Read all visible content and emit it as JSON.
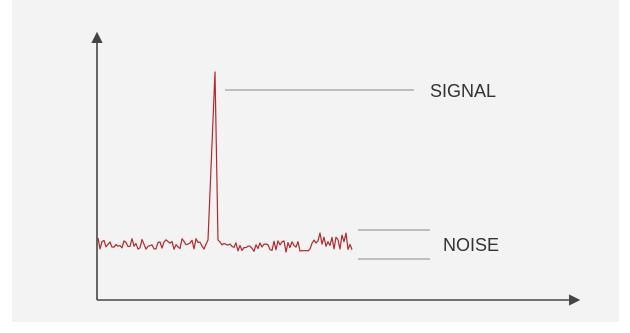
{
  "labels": {
    "signal": "SIGNAL",
    "noise": "NOISE"
  },
  "colors": {
    "background": "#ffffff",
    "panel": "#f3f3f3",
    "axis": "#444444",
    "trace": "#b5282e",
    "leader": "#888888",
    "text": "#333333"
  }
}
